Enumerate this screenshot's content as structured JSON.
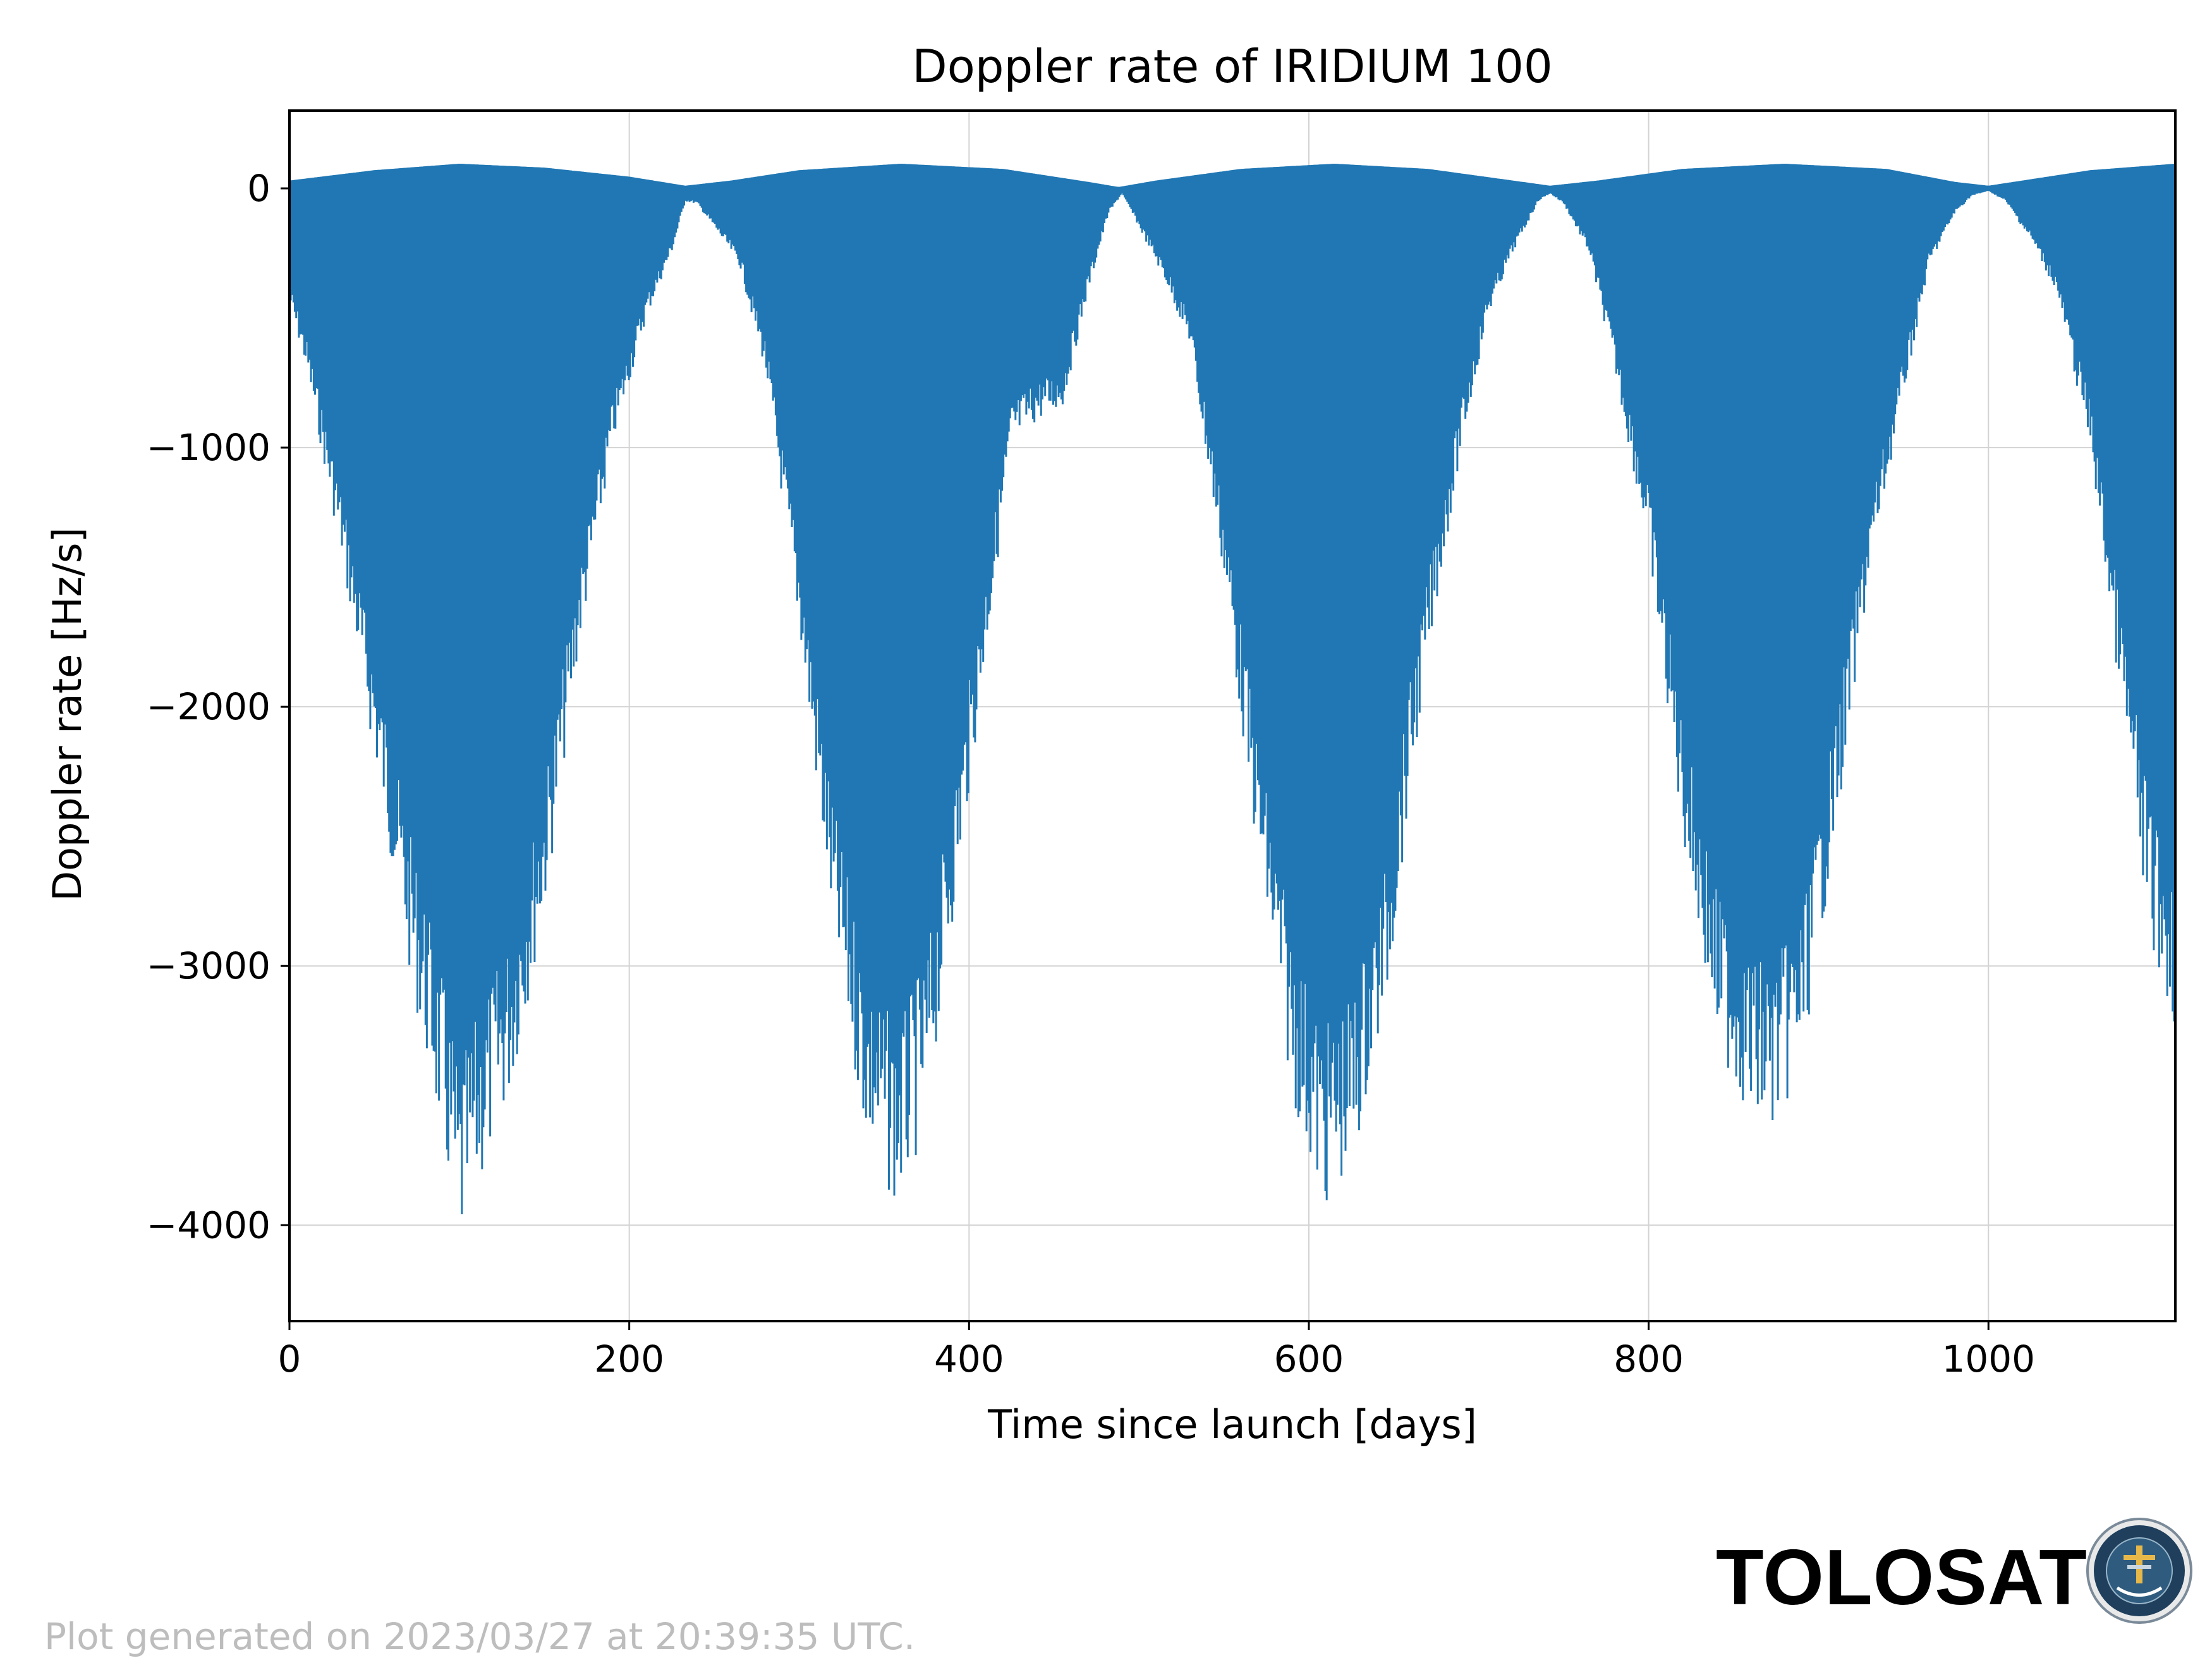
{
  "chart_data": {
    "type": "area",
    "title": "Doppler rate of IRIDIUM 100",
    "xlabel": "Time since launch [days]",
    "ylabel": "Doppler rate [Hz/s]",
    "xlim": [
      0,
      1110
    ],
    "ylim": [
      -4370,
      300
    ],
    "xticks": [
      0,
      200,
      400,
      600,
      800,
      1000
    ],
    "xtick_labels": [
      "0",
      "200",
      "400",
      "600",
      "800",
      "1000"
    ],
    "yticks": [
      0,
      -1000,
      -2000,
      -3000,
      -4000
    ],
    "ytick_labels": [
      "0",
      "−1000",
      "−2000",
      "−3000",
      "−4000"
    ],
    "grid": true,
    "series": [
      {
        "color": "#2077b4",
        "upper_envelope": {
          "x": [
            0,
            50,
            100,
            150,
            200,
            233,
            260,
            300,
            360,
            420,
            470,
            488,
            510,
            560,
            615,
            670,
            720,
            742,
            770,
            820,
            880,
            940,
            980,
            1000,
            1020,
            1060,
            1110
          ],
          "y": [
            30,
            70,
            95,
            80,
            45,
            10,
            30,
            70,
            95,
            75,
            25,
            5,
            30,
            75,
            95,
            75,
            30,
            10,
            30,
            75,
            95,
            75,
            25,
            10,
            30,
            70,
            95
          ]
        },
        "lower_envelope": {
          "x": [
            0,
            10,
            30,
            50,
            70,
            90,
            100,
            110,
            130,
            150,
            170,
            190,
            210,
            225,
            233,
            240,
            255,
            265,
            280,
            300,
            320,
            340,
            358,
            375,
            395,
            410,
            425,
            440,
            455,
            470,
            482,
            490,
            500,
            515,
            530,
            550,
            570,
            590,
            608,
            625,
            645,
            660,
            675,
            690,
            705,
            720,
            735,
            742,
            750,
            765,
            780,
            800,
            820,
            840,
            860,
            873,
            890,
            910,
            930,
            950,
            965,
            980,
            990,
            1000,
            1010,
            1025,
            1040,
            1060,
            1080,
            1095,
            1110
          ],
          "y": [
            -450,
            -700,
            -1400,
            -2200,
            -3000,
            -3700,
            -4150,
            -3900,
            -3500,
            -2800,
            -1800,
            -1000,
            -500,
            -250,
            -50,
            -60,
            -200,
            -300,
            -700,
            -1700,
            -2900,
            -3700,
            -3950,
            -3600,
            -2600,
            -1800,
            -1000,
            -900,
            -850,
            -400,
            -100,
            -20,
            -150,
            -350,
            -600,
            -1500,
            -2600,
            -3500,
            -3950,
            -3800,
            -3200,
            -2300,
            -1600,
            -1000,
            -500,
            -250,
            -50,
            -20,
            -60,
            -250,
            -700,
            -1400,
            -2500,
            -3300,
            -3600,
            -3650,
            -3400,
            -2500,
            -1500,
            -800,
            -300,
            -100,
            -30,
            -10,
            -50,
            -200,
            -400,
            -1000,
            -2100,
            -2900,
            -3250
          ]
        }
      }
    ]
  },
  "footer": {
    "generated_text": "Plot generated on 2023/03/27 at 20:39:35 UTC.",
    "brand_text": "TOLOSAT",
    "logo_text": "ASTRE·CC SUPAERO TOLOSAT"
  }
}
